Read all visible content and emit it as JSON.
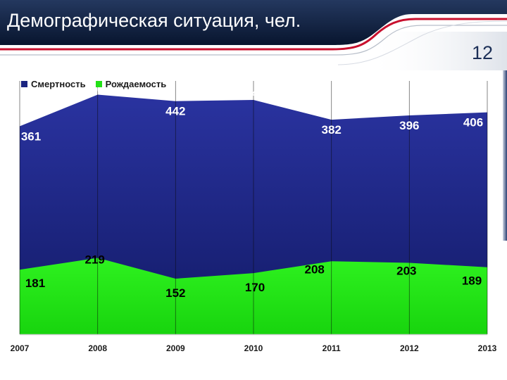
{
  "header": {
    "title": "Демографическая ситуация, чел.",
    "page_number": "12",
    "bar_color": "#0e1f3f",
    "accent_color": "#c8102e"
  },
  "chart_data": {
    "type": "area",
    "categories": [
      "2007",
      "2008",
      "2009",
      "2010",
      "2011",
      "2012",
      "2013"
    ],
    "series": [
      {
        "name": "Смертность",
        "values": [
          361,
          463,
          442,
          446,
          382,
          396,
          406
        ],
        "color": "#1a2480"
      },
      {
        "name": "Рождаемость",
        "values": [
          181,
          219,
          152,
          170,
          208,
          203,
          189
        ],
        "color": "#22e016"
      }
    ],
    "stacked": false,
    "legend_position": "top-left",
    "grid": "vertical"
  }
}
